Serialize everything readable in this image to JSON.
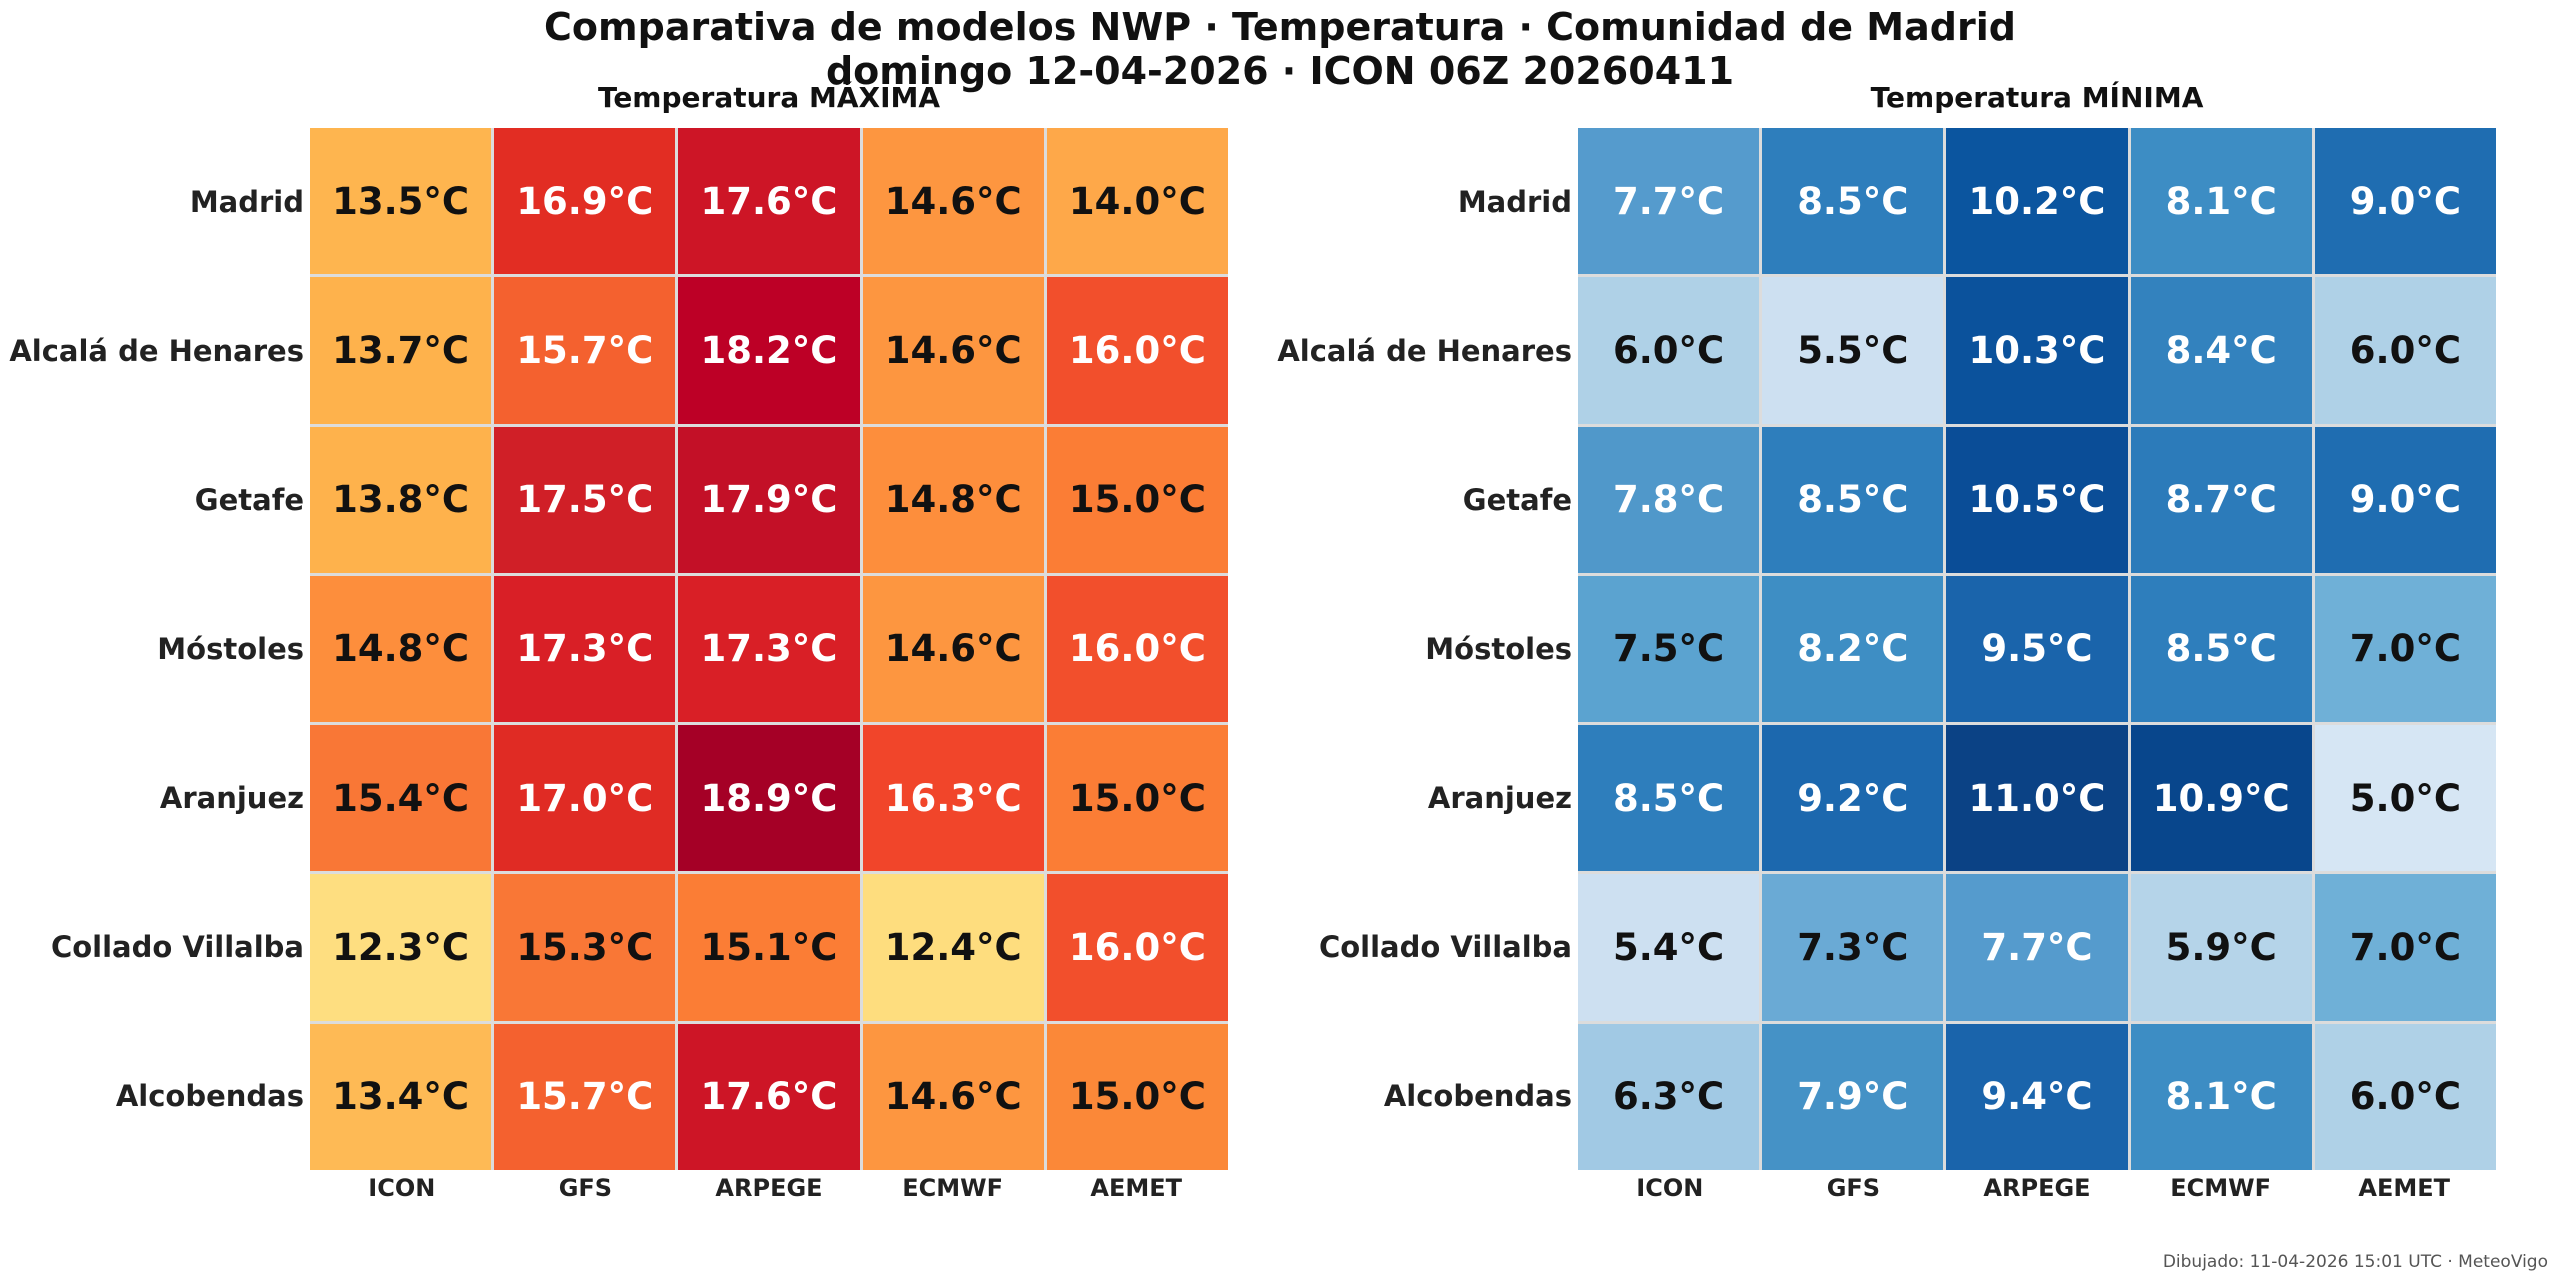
{
  "header": {
    "title": "Comparativa de modelos NWP · Temperatura · Comunidad de Madrid",
    "subtitle": "domingo 12-04-2026  ·  ICON 06Z 20260411"
  },
  "footer": {
    "text": "Dibujado: 11-04-2026 15:01 UTC · MeteoVigo"
  },
  "chart_data": [
    {
      "type": "heatmap",
      "title": "Temperatura MÁXIMA",
      "colormap": "YlOrRd",
      "unit": "°C",
      "xlabel": "",
      "ylabel": "",
      "columns": [
        "ICON",
        "GFS",
        "ARPEGE",
        "ECMWF",
        "AEMET"
      ],
      "rows": [
        "Madrid",
        "Alcalá de Henares",
        "Getafe",
        "Móstoles",
        "Aranjuez",
        "Collado Villalba",
        "Alcobendas"
      ],
      "values": [
        [
          13.5,
          16.9,
          17.6,
          14.6,
          14.0
        ],
        [
          13.7,
          15.7,
          18.2,
          14.6,
          16.0
        ],
        [
          13.8,
          17.5,
          17.9,
          14.8,
          15.0
        ],
        [
          14.8,
          17.3,
          17.3,
          14.6,
          16.0
        ],
        [
          15.4,
          17.0,
          18.9,
          16.3,
          15.0
        ],
        [
          12.3,
          15.3,
          15.1,
          12.4,
          16.0
        ],
        [
          13.4,
          15.7,
          17.6,
          14.6,
          15.0
        ]
      ],
      "labels": [
        [
          "13.5°C",
          "16.9°C",
          "17.6°C",
          "14.6°C",
          "14.0°C"
        ],
        [
          "13.7°C",
          "15.7°C",
          "18.2°C",
          "14.6°C",
          "16.0°C"
        ],
        [
          "13.8°C",
          "17.5°C",
          "17.9°C",
          "14.8°C",
          "15.0°C"
        ],
        [
          "14.8°C",
          "17.3°C",
          "17.3°C",
          "14.6°C",
          "16.0°C"
        ],
        [
          "15.4°C",
          "17.0°C",
          "18.9°C",
          "16.3°C",
          "15.0°C"
        ],
        [
          "12.3°C",
          "15.3°C",
          "15.1°C",
          "12.4°C",
          "16.0°C"
        ],
        [
          "13.4°C",
          "15.7°C",
          "17.6°C",
          "14.6°C",
          "15.0°C"
        ]
      ],
      "colors": [
        [
          "#feb54f",
          "#e22d23",
          "#cd1526",
          "#fd9640",
          "#fea849"
        ],
        [
          "#feb24c",
          "#f4612f",
          "#bd0026",
          "#fd9640",
          "#f24f2c"
        ],
        [
          "#feb24c",
          "#d01f27",
          "#c31027",
          "#fd8e3c",
          "#fb7d35"
        ],
        [
          "#fd8e3c",
          "#d91f26",
          "#d91f26",
          "#fd9640",
          "#f24f2c"
        ],
        [
          "#f97736",
          "#e02b24",
          "#a50026",
          "#f1452a",
          "#fb7d35"
        ],
        [
          "#fede80",
          "#f97736",
          "#fb7d35",
          "#fedd7e",
          "#f24f2c"
        ],
        [
          "#feba55",
          "#f4612f",
          "#cd1526",
          "#fd9640",
          "#fb8838"
        ]
      ],
      "text_colors": [
        [
          "#111111",
          "#ffffff",
          "#ffffff",
          "#111111",
          "#111111"
        ],
        [
          "#111111",
          "#ffffff",
          "#ffffff",
          "#111111",
          "#ffffff"
        ],
        [
          "#111111",
          "#ffffff",
          "#ffffff",
          "#111111",
          "#111111"
        ],
        [
          "#111111",
          "#ffffff",
          "#ffffff",
          "#111111",
          "#ffffff"
        ],
        [
          "#111111",
          "#ffffff",
          "#ffffff",
          "#ffffff",
          "#111111"
        ],
        [
          "#111111",
          "#111111",
          "#111111",
          "#111111",
          "#ffffff"
        ],
        [
          "#111111",
          "#ffffff",
          "#ffffff",
          "#111111",
          "#111111"
        ]
      ]
    },
    {
      "type": "heatmap",
      "title": "Temperatura MÍNIMA",
      "colormap": "Blues",
      "unit": "°C",
      "xlabel": "",
      "ylabel": "",
      "columns": [
        "ICON",
        "GFS",
        "ARPEGE",
        "ECMWF",
        "AEMET"
      ],
      "rows": [
        "Madrid",
        "Alcalá de Henares",
        "Getafe",
        "Móstoles",
        "Aranjuez",
        "Collado Villalba",
        "Alcobendas"
      ],
      "values": [
        [
          7.7,
          8.5,
          10.2,
          8.1,
          9.0
        ],
        [
          6.0,
          5.5,
          10.3,
          8.4,
          6.0
        ],
        [
          7.8,
          8.5,
          10.5,
          8.7,
          9.0
        ],
        [
          7.5,
          8.2,
          9.5,
          8.5,
          7.0
        ],
        [
          8.5,
          9.2,
          11.0,
          10.9,
          5.0
        ],
        [
          5.4,
          7.3,
          7.7,
          5.9,
          7.0
        ],
        [
          6.3,
          7.9,
          9.4,
          8.1,
          6.0
        ]
      ],
      "labels": [
        [
          "7.7°C",
          "8.5°C",
          "10.2°C",
          "8.1°C",
          "9.0°C"
        ],
        [
          "6.0°C",
          "5.5°C",
          "10.3°C",
          "8.4°C",
          "6.0°C"
        ],
        [
          "7.8°C",
          "8.5°C",
          "10.5°C",
          "8.7°C",
          "9.0°C"
        ],
        [
          "7.5°C",
          "8.2°C",
          "9.5°C",
          "8.5°C",
          "7.0°C"
        ],
        [
          "8.5°C",
          "9.2°C",
          "11.0°C",
          "10.9°C",
          "5.0°C"
        ],
        [
          "5.4°C",
          "7.3°C",
          "7.7°C",
          "5.9°C",
          "7.0°C"
        ],
        [
          "6.3°C",
          "7.9°C",
          "9.4°C",
          "8.1°C",
          "6.0°C"
        ]
      ],
      "colors": [
        [
          "#559bcd",
          "#2e7ebc",
          "#0b559f",
          "#3d8dc4",
          "#1f6db1"
        ],
        [
          "#afd1e7",
          "#cde0f1",
          "#0b529c",
          "#3382be",
          "#afd1e7"
        ],
        [
          "#5098ca",
          "#2e7ebc",
          "#0a4d97",
          "#2c7bba",
          "#1f6db1"
        ],
        [
          "#5ba3d0",
          "#3e8ec4",
          "#1a64ab",
          "#2e7ebc",
          "#6fb0d7"
        ],
        [
          "#2e7ebc",
          "#1c68ae",
          "#0b4285",
          "#08468c",
          "#d6e6f4"
        ],
        [
          "#cde0f1",
          "#6aaad5",
          "#559bcd",
          "#b5d4e9",
          "#6fb0d7"
        ],
        [
          "#a1c9e4",
          "#4592c6",
          "#1a64ab",
          "#3d8dc4",
          "#afd1e7"
        ]
      ],
      "text_colors": [
        [
          "#ffffff",
          "#ffffff",
          "#ffffff",
          "#ffffff",
          "#ffffff"
        ],
        [
          "#111111",
          "#111111",
          "#ffffff",
          "#ffffff",
          "#111111"
        ],
        [
          "#ffffff",
          "#ffffff",
          "#ffffff",
          "#ffffff",
          "#ffffff"
        ],
        [
          "#111111",
          "#ffffff",
          "#ffffff",
          "#ffffff",
          "#111111"
        ],
        [
          "#ffffff",
          "#ffffff",
          "#ffffff",
          "#ffffff",
          "#111111"
        ],
        [
          "#111111",
          "#111111",
          "#ffffff",
          "#111111",
          "#111111"
        ],
        [
          "#111111",
          "#ffffff",
          "#ffffff",
          "#ffffff",
          "#111111"
        ]
      ]
    }
  ]
}
